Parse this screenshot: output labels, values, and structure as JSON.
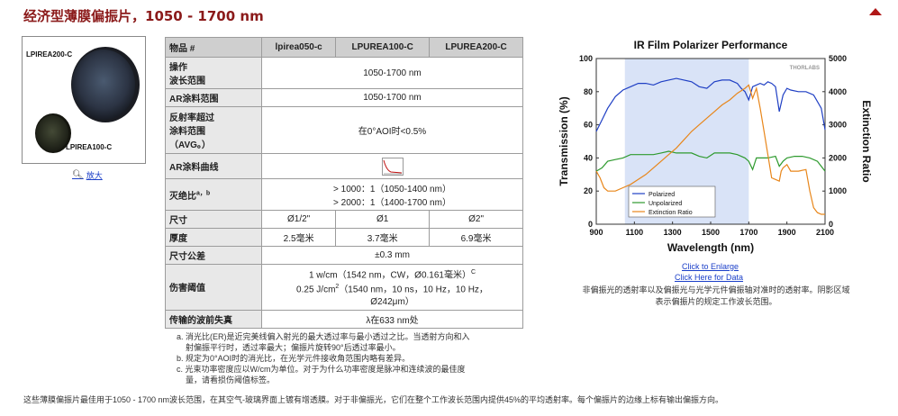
{
  "page": {
    "title": "经济型薄膜偏振片，1050 - 1700 nm"
  },
  "product_image": {
    "label_large": "LPIREA200-C",
    "label_small": "LPIREA100-C",
    "enlarge_label": "放大"
  },
  "table": {
    "headers": [
      "物品 #",
      "lpirea050-c",
      "LPUREA100-C",
      "LPUREA200-C"
    ],
    "rows": {
      "wavelength": {
        "label_line1": "操作",
        "label_line2": "波长范围",
        "value": "1050-1700 nm"
      },
      "ar_range": {
        "label": "AR涂料范围",
        "value": "1050-1700 nm"
      },
      "reflectance": {
        "label_line1": "反射率超过",
        "label_line2": "涂料范围",
        "label_line3": "（AVG。）",
        "value": "在0°AOI时<0.5%"
      },
      "ar_curve": {
        "label": "AR涂料曲线"
      },
      "extinction": {
        "label": "灭绝比",
        "label_sup": "a，b",
        "value_line1": "> 1000：1（1050-1400 nm）",
        "value_line2": "> 2000：1（1400-1700 nm）"
      },
      "size": {
        "label": "尺寸",
        "values": [
          "Ø1/2\"",
          "Ø1",
          "Ø2\""
        ]
      },
      "thickness": {
        "label": "厚度",
        "values": [
          "2.5毫米",
          "3.7毫米",
          "6.9毫米"
        ]
      },
      "size_tol": {
        "label": "尺寸公差",
        "value": "±0.3 mm"
      },
      "damage": {
        "label": "伤害阈值",
        "line1": "1 w/cm（1542 nm，CW，Ø0.161毫米）",
        "line1_sup": "C",
        "line2a": "0.25 J/cm",
        "line2_sup": "2",
        "line2b": "（1540 nm，10 ns，10 Hz，10 Hz，",
        "line3": "Ø242μm）"
      },
      "wavefront": {
        "label": "传输的波前失真",
        "value": "λ在633 nm处"
      }
    }
  },
  "footnotes": [
    "a. 消光比(ER)是近完美线偏入射光的最大透过率与最小透过之比。当透射方向和入",
    "射偏振平行时，透过率最大；偏振片旋转90°后透过率最小。",
    "b. 规定为0°AOI时的消光比，在光学元件接收角范围内略有差异。",
    "c. 光束功率密度应以W/cm为单位。对于为什么功率密度是脉冲和连续波的最佳度",
    "量，请看损伤阈值标签。"
  ],
  "bottom_note": "这些薄膜偏振片最佳用于1050 - 1700 nm波长范围，在其空气-玻璃界面上镀有增透膜。对于非偏振光，它们在整个工作波长范围内提供45%的平均透射率。每个偏振片的边缘上标有输出偏振方向。",
  "chart_links": {
    "enlarge": "Click to Enlarge",
    "data": "Click Here for Data"
  },
  "chart_caption_line1": "非偏振光的透射率以及偏振光与光学元件偏振轴对准时的透射率。阴影区域",
  "chart_caption_line2": "表示偏振片的规定工作波长范围。",
  "chart_data": {
    "type": "line",
    "title": "IR Film Polarizer Performance",
    "xlabel": "Wavelength (nm)",
    "ylabel": "Transmission (%)",
    "y2label": "Extinction Ratio",
    "xlim": [
      900,
      2100
    ],
    "ylim": [
      0,
      100
    ],
    "y2lim": [
      0,
      5000
    ],
    "xticks": [
      900,
      1100,
      1300,
      1500,
      1700,
      1900,
      2100
    ],
    "yticks": [
      0,
      20,
      40,
      60,
      80,
      100
    ],
    "y2ticks": [
      0,
      1000,
      2000,
      3000,
      4000,
      5000
    ],
    "shaded_range": [
      1050,
      1700
    ],
    "logo": "THORLABS",
    "legend_position": "bottom-center",
    "series": [
      {
        "name": "Polarized",
        "color": "#1f3fc4",
        "axis": "left",
        "x": [
          900,
          930,
          960,
          1000,
          1040,
          1080,
          1120,
          1160,
          1200,
          1240,
          1280,
          1320,
          1360,
          1400,
          1440,
          1480,
          1500,
          1520,
          1560,
          1600,
          1640,
          1660,
          1680,
          1700,
          1720,
          1740,
          1760,
          1780,
          1800,
          1820,
          1840,
          1860,
          1880,
          1900,
          1920,
          1960,
          2000,
          2040,
          2080,
          2100
        ],
        "y": [
          56,
          63,
          70,
          77,
          81,
          83,
          85,
          85,
          84,
          86,
          87,
          88,
          87,
          86,
          83,
          82,
          84,
          86,
          87,
          87,
          85,
          82,
          80,
          75,
          83,
          84,
          85,
          84,
          86,
          85,
          83,
          68,
          78,
          82,
          81,
          80,
          80,
          78,
          70,
          57
        ]
      },
      {
        "name": "Unpolarized",
        "color": "#2e9a2e",
        "axis": "left",
        "x": [
          900,
          930,
          960,
          1000,
          1040,
          1080,
          1120,
          1160,
          1200,
          1240,
          1280,
          1320,
          1360,
          1400,
          1440,
          1480,
          1520,
          1560,
          1600,
          1640,
          1680,
          1700,
          1720,
          1740,
          1760,
          1800,
          1840,
          1860,
          1880,
          1900,
          1940,
          1980,
          2020,
          2060,
          2100
        ],
        "y": [
          32,
          34,
          38,
          39,
          40,
          42,
          42,
          42,
          42,
          43,
          44,
          43,
          43,
          43,
          41,
          40,
          43,
          43,
          43,
          42,
          40,
          38,
          33,
          40,
          40,
          40,
          41,
          35,
          38,
          40,
          41,
          41,
          40,
          38,
          32
        ]
      },
      {
        "name": "Extinction Ratio",
        "color": "#e8861a",
        "axis": "right",
        "x": [
          900,
          920,
          940,
          960,
          1000,
          1040,
          1080,
          1120,
          1160,
          1200,
          1240,
          1280,
          1320,
          1360,
          1400,
          1440,
          1480,
          1520,
          1560,
          1600,
          1640,
          1680,
          1700,
          1720,
          1740,
          1760,
          1780,
          1800,
          1820,
          1840,
          1860,
          1870,
          1880,
          1900,
          1920,
          1960,
          2000,
          2020,
          2040,
          2060,
          2080,
          2100
        ],
        "y": [
          1600,
          1400,
          1100,
          1000,
          1000,
          1100,
          1200,
          1350,
          1500,
          1700,
          1900,
          2100,
          2300,
          2550,
          2800,
          3000,
          3200,
          3400,
          3600,
          3750,
          3950,
          4100,
          4200,
          3800,
          4100,
          3500,
          2800,
          2100,
          1400,
          1350,
          1300,
          1600,
          1700,
          1800,
          1600,
          1600,
          1650,
          1000,
          500,
          350,
          300,
          300
        ]
      }
    ]
  }
}
